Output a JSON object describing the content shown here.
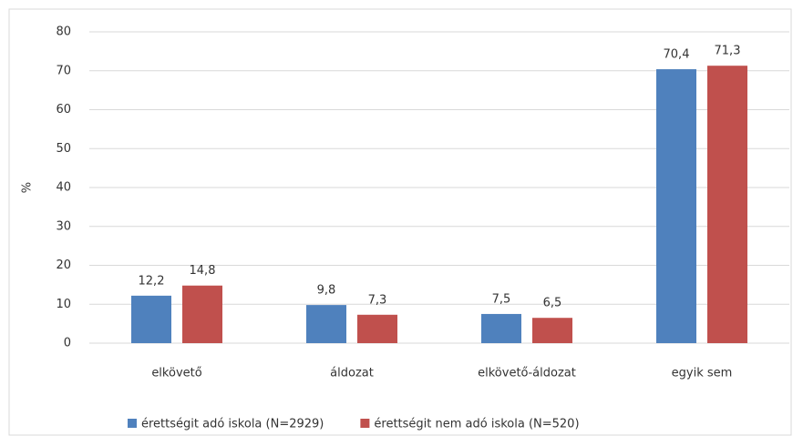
{
  "chart_data": {
    "type": "bar",
    "ylabel": "%",
    "categories": [
      "elkövető",
      "áldozat",
      "elkövető-áldozat",
      "egyik sem"
    ],
    "series": [
      {
        "name": "érettségit adó iskola (N=2929)",
        "color": "#4f81bd",
        "values": [
          12.2,
          9.8,
          7.5,
          70.4
        ],
        "value_labels": [
          "12,2",
          "9,8",
          "7,5",
          "70,4"
        ]
      },
      {
        "name": "érettségit nem adó iskola (N=520)",
        "color": "#c0504d",
        "values": [
          14.8,
          7.3,
          6.5,
          71.3
        ],
        "value_labels": [
          "14,8",
          "7,3",
          "6,5",
          "71,3"
        ]
      }
    ],
    "ylim": [
      0,
      80
    ],
    "yticks": [
      0,
      10,
      20,
      30,
      40,
      50,
      60,
      70,
      80
    ],
    "grid": true,
    "legend": "bottom"
  }
}
